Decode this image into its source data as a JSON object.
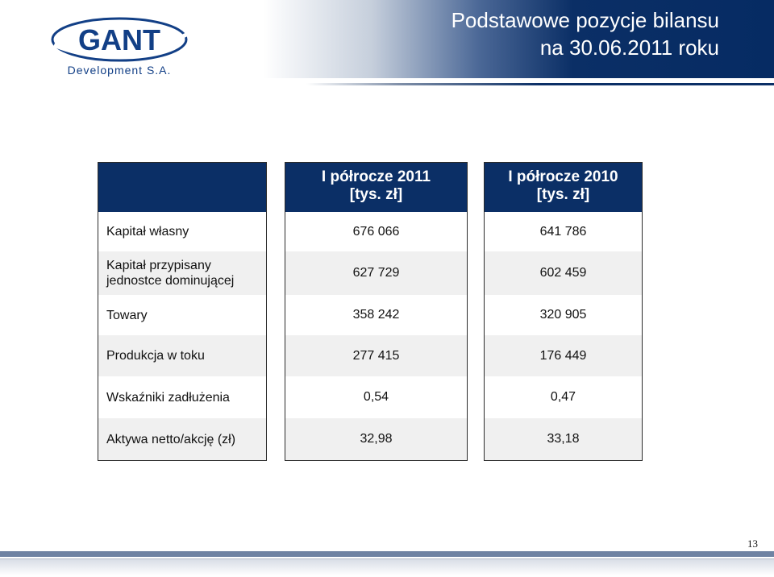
{
  "header": {
    "title_line1": "Podstawowe pozycje bilansu",
    "title_line2": "na 30.06.2011 roku",
    "logo_text": "GANT",
    "logo_subtext": "Development S.A."
  },
  "table": {
    "columns": [
      {
        "line1": "",
        "line2": ""
      },
      {
        "line1": "I półrocze 2011",
        "line2": "[tys. zł]"
      },
      {
        "line1": "I półrocze 2010",
        "line2": "[tys. zł]"
      }
    ],
    "rows": [
      {
        "label": "Kapitał własny",
        "v2011": "676 066",
        "v2010": "641 786"
      },
      {
        "label_line1": "Kapitał przypisany",
        "label_line2": "jednostce dominującej",
        "v2011": "627 729",
        "v2010": "602 459"
      },
      {
        "label": "Towary",
        "v2011": "358 242",
        "v2010": "320 905"
      },
      {
        "label": "Produkcja w toku",
        "v2011": "277 415",
        "v2010": "176 449"
      },
      {
        "label": "Wskaźniki zadłużenia",
        "v2011": "0,54",
        "v2010": "0,47"
      },
      {
        "label": "Aktywa netto/akcję (zł)",
        "v2011": "32,98",
        "v2010": "33,18"
      }
    ]
  },
  "footer": {
    "page_number": "13"
  },
  "colors": {
    "navy": "#0b2f66",
    "row_alt": "#f0f0f0"
  }
}
